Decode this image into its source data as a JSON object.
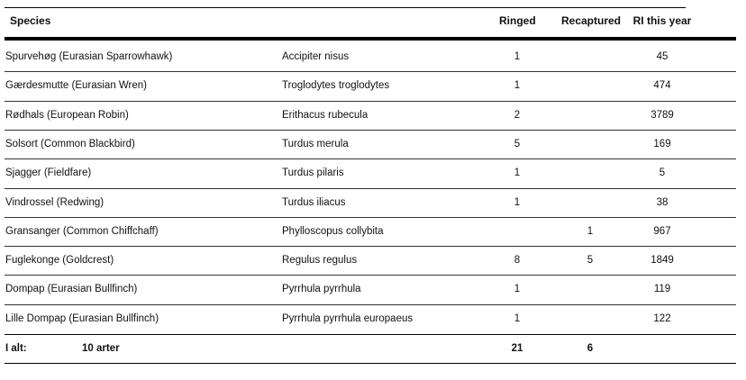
{
  "header": {
    "species": "Species",
    "ringed": "Ringed",
    "recaptured": "Recaptured",
    "ri_this_year": "RI this year"
  },
  "rows": [
    {
      "common": "Spurvehøg  (Eurasian Sparrowhawk)",
      "latin": "Accipiter nisus",
      "ringed": "1",
      "recaptured": "",
      "ri": "45"
    },
    {
      "common": "Gærdesmutte  (Eurasian Wren)",
      "latin": "Troglodytes troglodytes",
      "ringed": "1",
      "recaptured": "",
      "ri": "474"
    },
    {
      "common": "Rødhals  (European Robin)",
      "latin": "Erithacus rubecula",
      "ringed": "2",
      "recaptured": "",
      "ri": "3789"
    },
    {
      "common": "Solsort  (Common Blackbird)",
      "latin": "Turdus merula",
      "ringed": "5",
      "recaptured": "",
      "ri": "169"
    },
    {
      "common": "Sjagger  (Fieldfare)",
      "latin": "Turdus pilaris",
      "ringed": "1",
      "recaptured": "",
      "ri": "5"
    },
    {
      "common": "Vindrossel  (Redwing)",
      "latin": "Turdus iliacus",
      "ringed": "1",
      "recaptured": "",
      "ri": "38"
    },
    {
      "common": "Gransanger  (Common Chiffchaff)",
      "latin": "Phylloscopus collybita",
      "ringed": "",
      "recaptured": "1",
      "ri": "967"
    },
    {
      "common": "Fuglekonge  (Goldcrest)",
      "latin": "Regulus regulus",
      "ringed": "8",
      "recaptured": "5",
      "ri": "1849"
    },
    {
      "common": "Dompap  (Eurasian Bullfinch)",
      "latin": "Pyrrhula pyrrhula",
      "ringed": "1",
      "recaptured": "",
      "ri": "119"
    },
    {
      "common": "Lille Dompap  (Eurasian Bullfinch)",
      "latin": "Pyrrhula pyrrhula europaeus",
      "ringed": "1",
      "recaptured": "",
      "ri": "122"
    }
  ],
  "footer": {
    "label": "I alt:",
    "species_count": "10 arter",
    "ringed_total": "21",
    "recaptured_total": "6"
  }
}
